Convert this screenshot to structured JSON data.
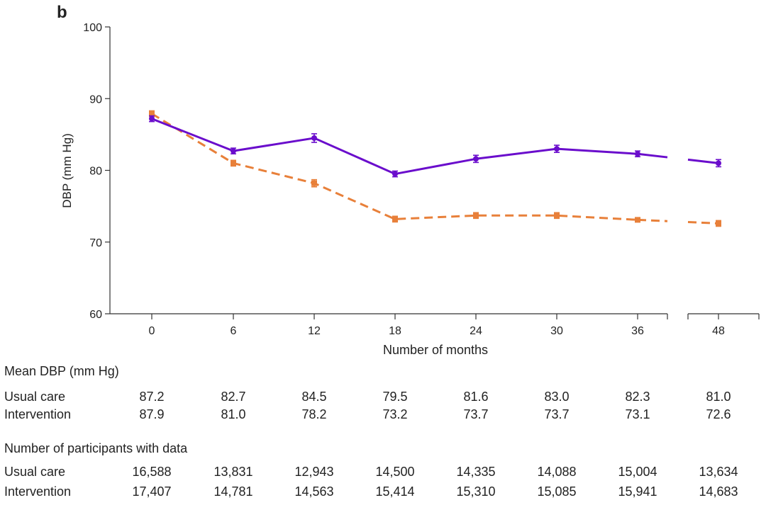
{
  "panel_label": "b",
  "chart_data": {
    "type": "line",
    "title": "",
    "xlabel": "Number of months",
    "ylabel": "DBP (mm Hg)",
    "x": [
      0,
      6,
      12,
      18,
      24,
      30,
      36,
      48
    ],
    "x_tick_labels": [
      "0",
      "6",
      "12",
      "18",
      "24",
      "30",
      "36",
      "48"
    ],
    "y_ticks": [
      60,
      70,
      80,
      90,
      100
    ],
    "ylim": [
      60,
      100
    ],
    "axis_break": "between 36 and 48",
    "grid": false,
    "series": [
      {
        "values": [
          87.2,
          82.7,
          84.5,
          79.5,
          81.6,
          83.0,
          82.3,
          81.0
        ],
        "errors": [
          0.4,
          0.4,
          0.6,
          0.4,
          0.5,
          0.5,
          0.4,
          0.5
        ],
        "color": "#6a0dcc",
        "line_style": "solid",
        "marker": "circle"
      },
      {
        "values": [
          87.9,
          81.0,
          78.2,
          73.2,
          73.7,
          73.7,
          73.1,
          72.6
        ],
        "errors": [
          0.4,
          0.4,
          0.5,
          0.4,
          0.4,
          0.4,
          0.3,
          0.4
        ],
        "color": "#e8803a",
        "line_style": "dashed",
        "marker": "square"
      }
    ]
  },
  "table": {
    "mean_heading": "Mean DBP (mm Hg)",
    "mean_rows": [
      {
        "label": "Usual care",
        "values": [
          "87.2",
          "82.7",
          "84.5",
          "79.5",
          "81.6",
          "83.0",
          "82.3",
          "81.0"
        ]
      },
      {
        "label": "Intervention",
        "values": [
          "87.9",
          "81.0",
          "78.2",
          "73.2",
          "73.7",
          "73.7",
          "73.1",
          "72.6"
        ]
      }
    ],
    "n_heading": "Number of participants with data",
    "n_rows": [
      {
        "label": "Usual care",
        "values": [
          "16,588",
          "13,831",
          "12,943",
          "14,500",
          "14,335",
          "14,088",
          "15,004",
          "13,634"
        ]
      },
      {
        "label": "Intervention",
        "values": [
          "17,407",
          "14,781",
          "14,563",
          "15,414",
          "15,310",
          "15,085",
          "15,941",
          "14,683"
        ]
      }
    ]
  }
}
